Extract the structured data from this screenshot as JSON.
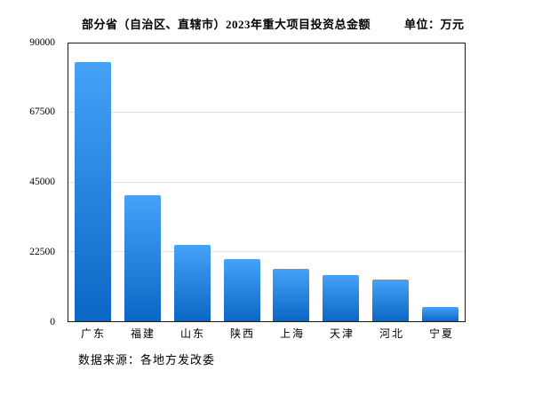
{
  "header": {
    "title": "部分省（自治区、直辖市）2023年重大项目投资总金额",
    "unit_label": "单位：万元"
  },
  "footer": {
    "source": "数据来源：各地方发改委"
  },
  "colors": {
    "bar_gradient_top": "#45a2f8",
    "bar_gradient_bottom": "#0b67c4",
    "gridline": "#e2e2e2",
    "plot_border": "#1a1a1a"
  },
  "chart_data": {
    "type": "bar",
    "title": "部分省（自治区、直辖市）2023年重大项目投资总金额",
    "unit": "万元",
    "categories": [
      "广东",
      "福建",
      "山东",
      "陕西",
      "上海",
      "天津",
      "河北",
      "宁夏"
    ],
    "values": [
      84000,
      40700,
      24800,
      20000,
      17000,
      15100,
      13400,
      4500
    ],
    "xlabel": "",
    "ylabel": "",
    "ylim": [
      0,
      90000
    ],
    "yticks": [
      0,
      22500,
      45000,
      67500,
      90000
    ],
    "grid": true,
    "legend": false,
    "source_note": "数据来源：各地方发改委"
  }
}
